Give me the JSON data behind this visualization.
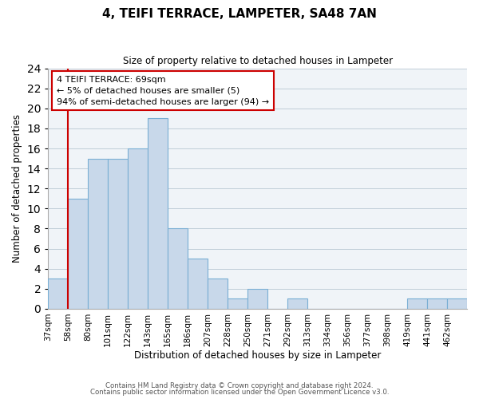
{
  "title": "4, TEIFI TERRACE, LAMPETER, SA48 7AN",
  "subtitle": "Size of property relative to detached houses in Lampeter",
  "xlabel": "Distribution of detached houses by size in Lampeter",
  "ylabel": "Number of detached properties",
  "bar_color": "#c8d8ea",
  "bar_edge_color": "#7aafd4",
  "bin_labels": [
    "37sqm",
    "58sqm",
    "80sqm",
    "101sqm",
    "122sqm",
    "143sqm",
    "165sqm",
    "186sqm",
    "207sqm",
    "228sqm",
    "250sqm",
    "271sqm",
    "292sqm",
    "313sqm",
    "334sqm",
    "356sqm",
    "377sqm",
    "398sqm",
    "419sqm",
    "441sqm",
    "462sqm"
  ],
  "bar_heights": [
    3,
    11,
    15,
    15,
    16,
    19,
    8,
    5,
    3,
    1,
    2,
    0,
    1,
    0,
    0,
    0,
    0,
    0,
    1,
    1,
    1
  ],
  "ylim": [
    0,
    24
  ],
  "yticks": [
    0,
    2,
    4,
    6,
    8,
    10,
    12,
    14,
    16,
    18,
    20,
    22,
    24
  ],
  "property_line_bin": 1,
  "annotation_title": "4 TEIFI TERRACE: 69sqm",
  "annotation_line1": "← 5% of detached houses are smaller (5)",
  "annotation_line2": "94% of semi-detached houses are larger (94) →",
  "annotation_box_color": "#ffffff",
  "annotation_box_edge": "#cc0000",
  "property_line_color": "#cc0000",
  "footnote1": "Contains HM Land Registry data © Crown copyright and database right 2024.",
  "footnote2": "Contains public sector information licensed under the Open Government Licence v3.0.",
  "bg_color": "#f0f4f8"
}
